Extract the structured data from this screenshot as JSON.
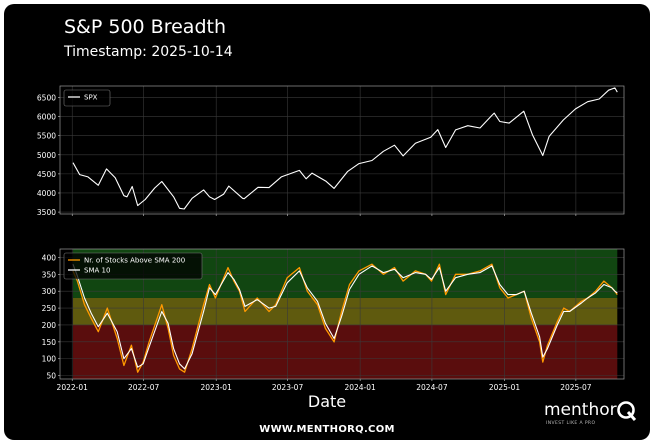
{
  "header": {
    "title": "S&P 500 Breadth",
    "subtitle": "Timestamp: 2025-10-14"
  },
  "footer": {
    "xlabel": "Date",
    "website": "WWW.MENTHORQ.COM",
    "logo_word": "menthor",
    "logo_tagline": "INVEST LIKE A PRO"
  },
  "colors": {
    "background": "#000000",
    "spx_line": "#ffffff",
    "count_line": "#ff9900",
    "sma_line": "#ffffff",
    "zone_high": "#114611",
    "zone_mid": "#5f5a0e",
    "zone_low": "#5a0d0d"
  },
  "chart_data": [
    {
      "type": "line",
      "title": "",
      "ylim": [
        3450,
        6800
      ],
      "yticks": [
        3500,
        4000,
        4500,
        5000,
        5500,
        6000,
        6500
      ],
      "xlim": [
        "2021-12-01",
        "2025-10-31"
      ],
      "grid": true,
      "legend": "top-left",
      "series": [
        {
          "name": "SPX",
          "x": [
            "2022-01-03",
            "2022-01-20",
            "2022-02-10",
            "2022-03-08",
            "2022-03-29",
            "2022-04-20",
            "2022-05-12",
            "2022-05-20",
            "2022-06-02",
            "2022-06-16",
            "2022-07-05",
            "2022-07-29",
            "2022-08-16",
            "2022-09-15",
            "2022-09-30",
            "2022-10-12",
            "2022-11-01",
            "2022-11-30",
            "2022-12-15",
            "2022-12-28",
            "2023-01-20",
            "2023-02-02",
            "2023-03-09",
            "2023-03-13",
            "2023-04-17",
            "2023-05-15",
            "2023-06-15",
            "2023-07-31",
            "2023-08-17",
            "2023-09-01",
            "2023-10-06",
            "2023-10-27",
            "2023-11-30",
            "2023-12-29",
            "2024-01-31",
            "2024-02-29",
            "2024-03-28",
            "2024-04-19",
            "2024-05-20",
            "2024-06-28",
            "2024-07-16",
            "2024-08-05",
            "2024-08-30",
            "2024-09-30",
            "2024-10-31",
            "2024-11-30",
            "2024-12-06",
            "2024-12-20",
            "2025-01-13",
            "2025-02-19",
            "2025-03-13",
            "2025-04-08",
            "2025-04-24",
            "2025-05-30",
            "2025-06-30",
            "2025-07-31",
            "2025-08-29",
            "2025-09-22",
            "2025-10-08",
            "2025-10-14"
          ],
          "y": [
            4793,
            4480,
            4420,
            4200,
            4630,
            4400,
            3930,
            3900,
            4170,
            3670,
            3830,
            4130,
            4300,
            3900,
            3600,
            3580,
            3860,
            4080,
            3900,
            3830,
            3970,
            4180,
            3860,
            3850,
            4150,
            4140,
            4420,
            4590,
            4370,
            4520,
            4310,
            4120,
            4560,
            4770,
            4850,
            5090,
            5250,
            4970,
            5300,
            5460,
            5660,
            5190,
            5650,
            5760,
            5700,
            6030,
            6090,
            5870,
            5830,
            6140,
            5520,
            4980,
            5480,
            5910,
            6200,
            6390,
            6460,
            6690,
            6750,
            6640
          ]
        }
      ]
    },
    {
      "type": "line",
      "title": "",
      "ylim": [
        40,
        425
      ],
      "yticks": [
        50,
        100,
        150,
        200,
        250,
        300,
        350,
        400
      ],
      "xlim": [
        "2021-12-01",
        "2025-10-31"
      ],
      "xticks": [
        "2022-01",
        "2022-07",
        "2023-01",
        "2023-07",
        "2024-01",
        "2024-07",
        "2025-01",
        "2025-07"
      ],
      "xlabel": "Date",
      "grid": true,
      "legend": "top-left",
      "zones": [
        {
          "from": 280,
          "to": 425,
          "color": "#114611"
        },
        {
          "from": 200,
          "to": 280,
          "color": "#5f5a0e"
        },
        {
          "from": 40,
          "to": 200,
          "color": "#5a0d0d"
        }
      ],
      "series": [
        {
          "name": "Nr. of Stocks Above SMA 200",
          "x": [
            "2022-01-03",
            "2022-01-14",
            "2022-02-01",
            "2022-02-18",
            "2022-03-08",
            "2022-03-31",
            "2022-04-25",
            "2022-05-12",
            "2022-05-31",
            "2022-06-16",
            "2022-06-30",
            "2022-07-15",
            "2022-08-16",
            "2022-09-01",
            "2022-09-15",
            "2022-09-30",
            "2022-10-13",
            "2022-11-01",
            "2022-11-30",
            "2022-12-15",
            "2022-12-30",
            "2023-01-31",
            "2023-02-15",
            "2023-03-01",
            "2023-03-15",
            "2023-04-15",
            "2023-05-15",
            "2023-06-01",
            "2023-06-30",
            "2023-07-31",
            "2023-08-20",
            "2023-09-15",
            "2023-10-05",
            "2023-10-27",
            "2023-11-15",
            "2023-12-05",
            "2023-12-29",
            "2024-01-31",
            "2024-02-29",
            "2024-03-28",
            "2024-04-19",
            "2024-05-20",
            "2024-06-15",
            "2024-06-30",
            "2024-07-20",
            "2024-08-05",
            "2024-08-30",
            "2024-09-30",
            "2024-10-31",
            "2024-11-30",
            "2024-12-20",
            "2025-01-10",
            "2025-01-31",
            "2025-02-20",
            "2025-03-10",
            "2025-03-31",
            "2025-04-08",
            "2025-04-20",
            "2025-05-15",
            "2025-05-31",
            "2025-06-15",
            "2025-07-15",
            "2025-07-31",
            "2025-08-20",
            "2025-09-10",
            "2025-09-30",
            "2025-10-08",
            "2025-10-14"
          ],
          "y": [
            360,
            330,
            260,
            220,
            180,
            250,
            160,
            80,
            140,
            60,
            90,
            150,
            260,
            190,
            110,
            70,
            60,
            130,
            260,
            320,
            280,
            370,
            330,
            300,
            240,
            280,
            240,
            260,
            340,
            370,
            300,
            260,
            190,
            150,
            240,
            320,
            360,
            380,
            350,
            370,
            330,
            360,
            350,
            330,
            380,
            290,
            350,
            350,
            360,
            380,
            310,
            280,
            290,
            300,
            220,
            150,
            90,
            140,
            210,
            250,
            240,
            270,
            280,
            300,
            330,
            310,
            300,
            290
          ]
        },
        {
          "name": "SMA 10",
          "x": [
            "2022-01-03",
            "2022-01-14",
            "2022-02-01",
            "2022-02-18",
            "2022-03-08",
            "2022-03-31",
            "2022-04-25",
            "2022-05-12",
            "2022-05-31",
            "2022-06-16",
            "2022-06-30",
            "2022-07-15",
            "2022-08-16",
            "2022-09-01",
            "2022-09-15",
            "2022-09-30",
            "2022-10-13",
            "2022-11-01",
            "2022-11-30",
            "2022-12-15",
            "2022-12-30",
            "2023-01-31",
            "2023-02-15",
            "2023-03-01",
            "2023-03-15",
            "2023-04-15",
            "2023-05-15",
            "2023-06-01",
            "2023-06-30",
            "2023-07-31",
            "2023-08-20",
            "2023-09-15",
            "2023-10-05",
            "2023-10-27",
            "2023-11-15",
            "2023-12-05",
            "2023-12-29",
            "2024-01-31",
            "2024-02-29",
            "2024-03-28",
            "2024-04-19",
            "2024-05-20",
            "2024-06-15",
            "2024-06-30",
            "2024-07-20",
            "2024-08-05",
            "2024-08-30",
            "2024-09-30",
            "2024-10-31",
            "2024-11-30",
            "2024-12-20",
            "2025-01-10",
            "2025-01-31",
            "2025-02-20",
            "2025-03-10",
            "2025-03-31",
            "2025-04-08",
            "2025-04-20",
            "2025-05-15",
            "2025-05-31",
            "2025-06-15",
            "2025-07-15",
            "2025-07-31",
            "2025-08-20",
            "2025-09-10",
            "2025-09-30",
            "2025-10-08",
            "2025-10-14"
          ],
          "y": [
            380,
            345,
            280,
            235,
            195,
            235,
            180,
            100,
            130,
            75,
            85,
            135,
            240,
            205,
            130,
            85,
            70,
            115,
            240,
            310,
            290,
            355,
            335,
            305,
            255,
            275,
            250,
            255,
            325,
            360,
            310,
            270,
            205,
            160,
            225,
            305,
            350,
            375,
            355,
            365,
            340,
            355,
            350,
            335,
            370,
            300,
            340,
            350,
            355,
            375,
            320,
            290,
            290,
            300,
            235,
            165,
            105,
            130,
            200,
            240,
            240,
            265,
            280,
            295,
            320,
            310,
            300,
            295
          ]
        }
      ]
    }
  ]
}
